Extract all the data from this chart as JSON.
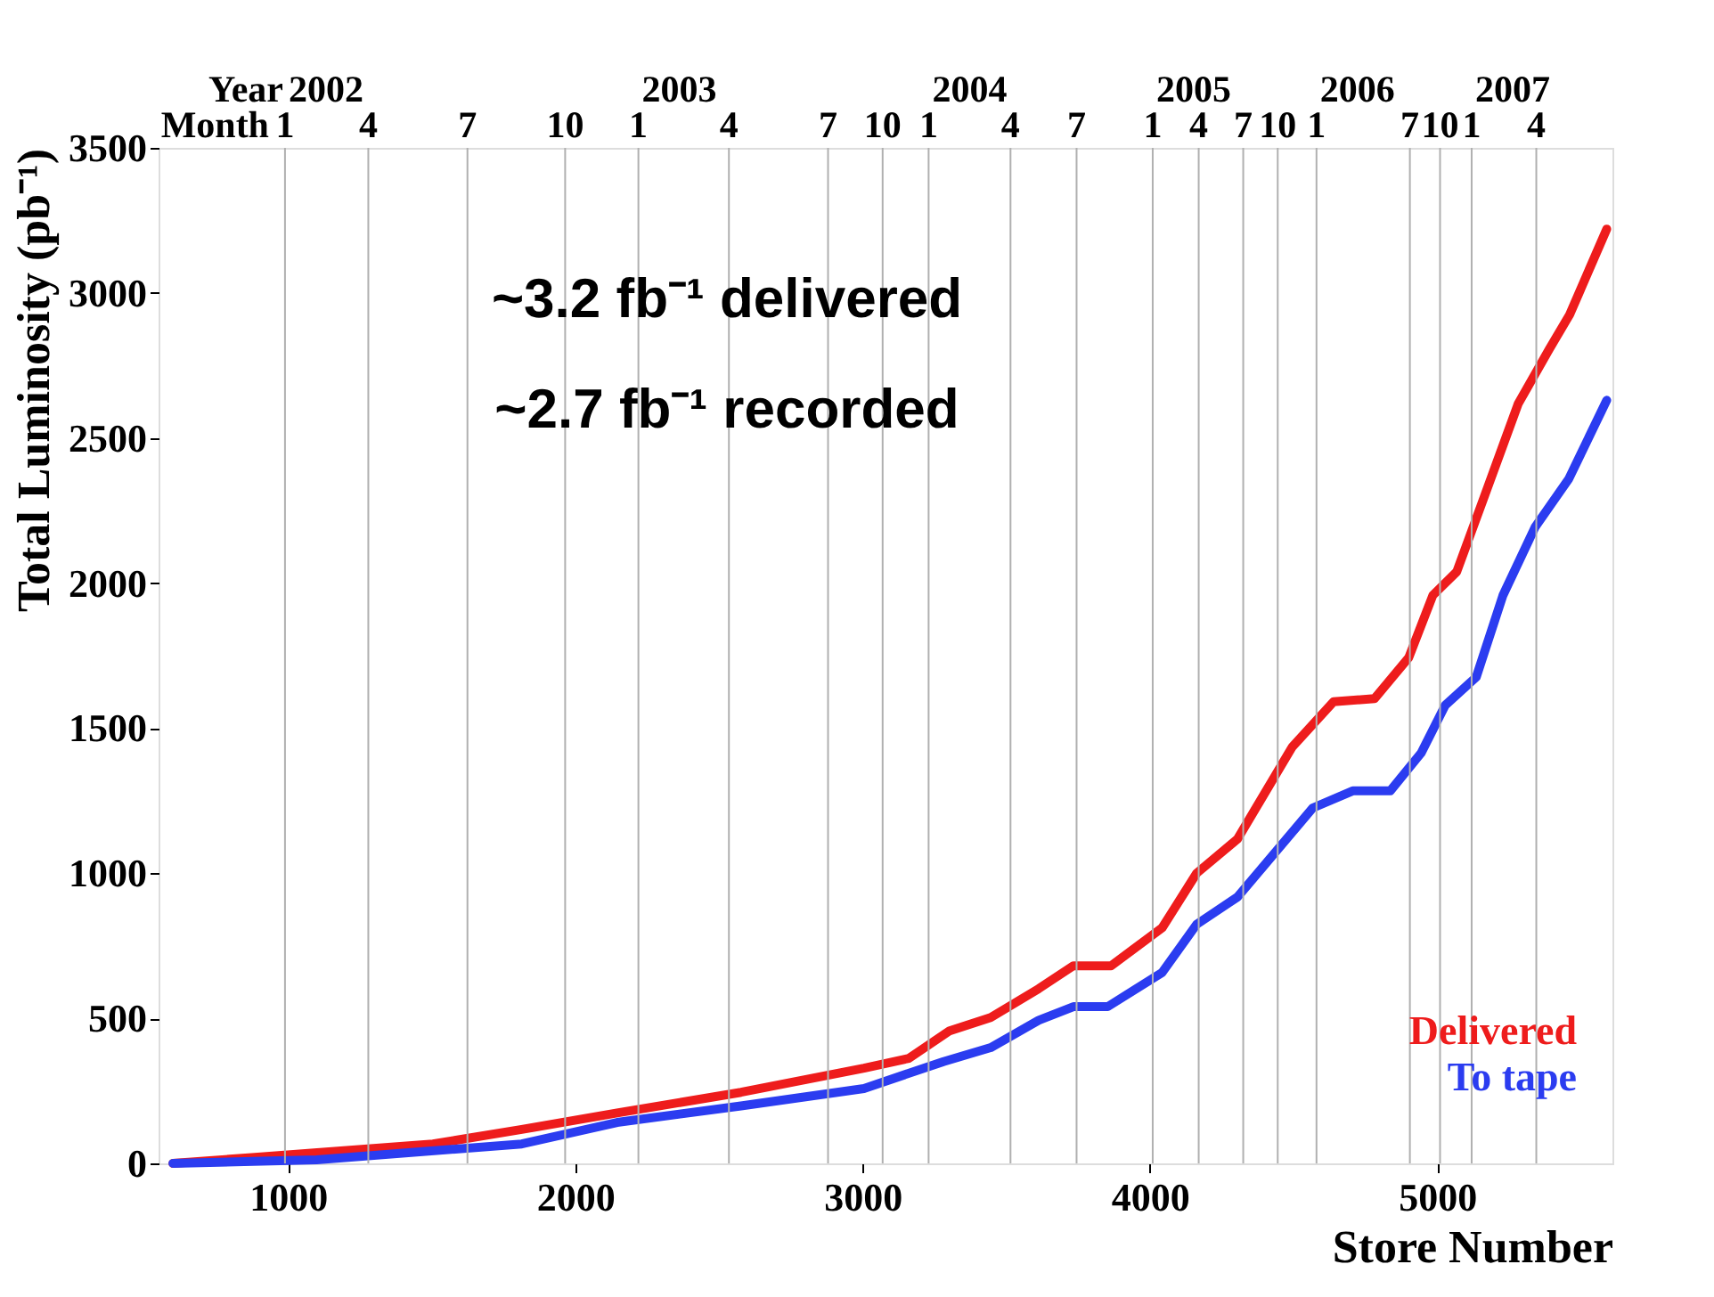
{
  "chart_data": {
    "type": "line",
    "xlabel": "Store Number",
    "ylabel": "Total Luminosity (pb⁻¹)",
    "xlim": [
      550,
      5610
    ],
    "xticks": [
      1000,
      2000,
      3000,
      4000,
      5000
    ],
    "ylim": [
      0,
      3500
    ],
    "yticks": [
      0,
      500,
      1000,
      1500,
      2000,
      2500,
      3000,
      3500
    ],
    "ref_lines": [
      {
        "axis": "x",
        "value": 990,
        "color": "#b0b0b0"
      },
      {
        "axis": "x",
        "value": 1280,
        "color": "#b0b0b0"
      },
      {
        "axis": "x",
        "value": 1625,
        "color": "#b0b0b0"
      },
      {
        "axis": "x",
        "value": 1965,
        "color": "#b0b0b0"
      },
      {
        "axis": "x",
        "value": 2220,
        "color": "#b0b0b0"
      },
      {
        "axis": "x",
        "value": 2535,
        "color": "#b0b0b0"
      },
      {
        "axis": "x",
        "value": 2880,
        "color": "#b0b0b0"
      },
      {
        "axis": "x",
        "value": 3070,
        "color": "#b0b0b0"
      },
      {
        "axis": "x",
        "value": 3230,
        "color": "#b0b0b0"
      },
      {
        "axis": "x",
        "value": 3515,
        "color": "#b0b0b0"
      },
      {
        "axis": "x",
        "value": 3745,
        "color": "#b0b0b0"
      },
      {
        "axis": "x",
        "value": 4010,
        "color": "#b0b0b0"
      },
      {
        "axis": "x",
        "value": 4170,
        "color": "#b0b0b0"
      },
      {
        "axis": "x",
        "value": 4325,
        "color": "#b0b0b0"
      },
      {
        "axis": "x",
        "value": 4445,
        "color": "#b0b0b0"
      },
      {
        "axis": "x",
        "value": 4580,
        "color": "#b0b0b0"
      },
      {
        "axis": "x",
        "value": 4905,
        "color": "#b0b0b0"
      },
      {
        "axis": "x",
        "value": 5010,
        "color": "#b0b0b0"
      },
      {
        "axis": "x",
        "value": 5120,
        "color": "#b0b0b0"
      },
      {
        "axis": "x",
        "value": 5345,
        "color": "#b0b0b0"
      }
    ],
    "legend": "bottom right",
    "marker": "none",
    "line_style": "solid",
    "annotations": [
      "~3.2 fb⁻¹ delivered",
      "~2.7 fb⁻¹ recorded",
      "Year",
      "Month",
      "2002",
      "2003",
      "2004",
      "2005",
      "2006",
      "2007",
      "1",
      "4",
      "7",
      "10",
      "1",
      "4",
      "7",
      "10",
      "1",
      "4",
      "7",
      "1",
      "4",
      "7",
      "10",
      "1",
      "7",
      "10",
      "1",
      "4"
    ],
    "series": [
      {
        "name": "Delivered",
        "color": "#ee1c1c",
        "x": [
          600,
          885,
          1505,
          1814,
          2146,
          2577,
          3005,
          3161,
          3303,
          3446,
          3613,
          3734,
          3865,
          4043,
          4163,
          4305,
          4496,
          4639,
          4782,
          4901,
          4985,
          5068,
          5161,
          5282,
          5390,
          5461,
          5590
        ],
        "values": [
          0,
          21,
          67,
          117,
          174,
          245,
          328,
          362,
          457,
          503,
          602,
          681,
          681,
          812,
          1000,
          1118,
          1436,
          1591,
          1602,
          1743,
          1958,
          2039,
          2290,
          2618,
          2806,
          2925,
          3220
        ]
      },
      {
        "name": "To tape",
        "color": "#2b3cf0",
        "x": [
          600,
          1100,
          1814,
          2146,
          2577,
          3005,
          3282,
          3446,
          3613,
          3734,
          3853,
          4043,
          4163,
          4305,
          4567,
          4706,
          4837,
          4944,
          5028,
          5136,
          5229,
          5341,
          5458,
          5590
        ],
        "values": [
          0,
          12,
          67,
          141,
          198,
          258,
          351,
          399,
          493,
          540,
          540,
          658,
          824,
          918,
          1225,
          1284,
          1284,
          1414,
          1579,
          1676,
          1958,
          2193,
          2359,
          2630
        ]
      }
    ]
  }
}
